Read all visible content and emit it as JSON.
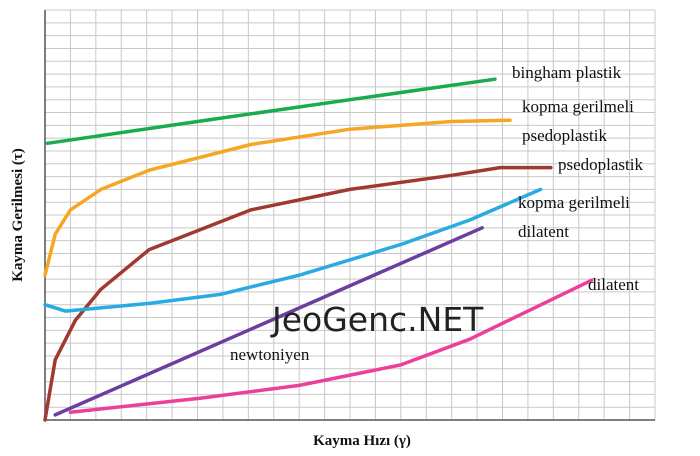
{
  "chart_data": {
    "type": "line",
    "x_label": "Kayma Hızı (γ)",
    "y_label": "Kayma Gerilmesi (τ)",
    "watermark": "JeoGenc.NET",
    "xlim": [
      0,
      24
    ],
    "ylim": [
      0,
      32
    ],
    "grid": true,
    "series": [
      {
        "name": "bingham plastik",
        "color": "#1aab4f",
        "x": [
          0.1,
          6,
          12,
          17.7
        ],
        "values": [
          21.6,
          23.3,
          25.0,
          26.6
        ]
      },
      {
        "name": "kopma gerilmeli psedoplastik",
        "color": "#f5a623",
        "x": [
          0,
          0.4,
          1.0,
          2.2,
          4.1,
          8.1,
          12.0,
          16.0,
          18.3
        ],
        "values": [
          11.3,
          14.5,
          16.4,
          18.0,
          19.5,
          21.5,
          22.7,
          23.3,
          23.4
        ]
      },
      {
        "name": "psedoplastik",
        "color": "#a0392f",
        "x": [
          0,
          0.4,
          1.2,
          2.2,
          4.1,
          8.1,
          12.0,
          16.0,
          17.9,
          19.9
        ],
        "values": [
          0,
          4.7,
          7.8,
          10.2,
          13.3,
          16.4,
          18.0,
          19.1,
          19.7,
          19.7
        ]
      },
      {
        "name": "kopma gerilmeli dilatent",
        "color": "#29abe2",
        "x": [
          0,
          0.8,
          4.1,
          6.9,
          10.0,
          14.0,
          16.7,
          19.5
        ],
        "values": [
          9.0,
          8.5,
          9.1,
          9.8,
          11.3,
          13.7,
          15.6,
          18.0
        ]
      },
      {
        "name": "newtoniyen",
        "color": "#6b3fa0",
        "x": [
          0.4,
          17.2
        ],
        "values": [
          0.4,
          15.0
        ]
      },
      {
        "name": "dilatent",
        "color": "#ec3f9a",
        "x": [
          1.0,
          6.1,
          10.0,
          14.0,
          16.7,
          19.1,
          21.5
        ],
        "values": [
          0.6,
          1.7,
          2.7,
          4.3,
          6.3,
          8.6,
          10.9
        ]
      }
    ]
  }
}
